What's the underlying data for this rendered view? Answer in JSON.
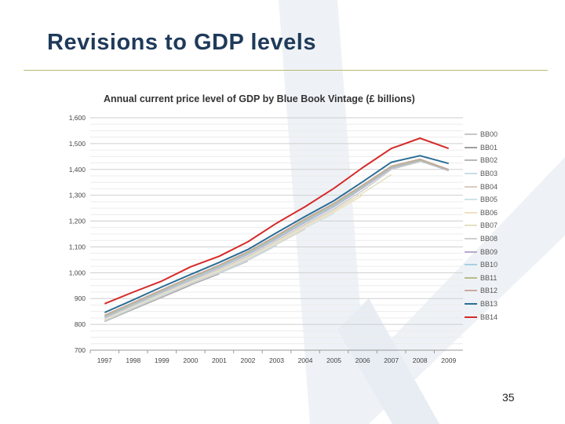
{
  "slide": {
    "title": "Revisions to GDP levels",
    "page_number": "35",
    "accent_color": "#1f3a5a",
    "rule_color": "#b9b96e"
  },
  "chart_data": {
    "type": "line",
    "title": "Annual current price level of GDP by Blue Book Vintage  (£ billions)",
    "xlabel": "",
    "ylabel": "",
    "ylim": [
      700,
      1600
    ],
    "yticks": [
      700,
      800,
      900,
      1000,
      1100,
      1200,
      1300,
      1400,
      1500,
      1600
    ],
    "ytick_labels": [
      "700",
      "800",
      "900",
      "1,000",
      "1,100",
      "1,200",
      "1,300",
      "1,400",
      "1,500",
      "1,600"
    ],
    "x": [
      "1997",
      "1998",
      "1999",
      "2000",
      "2001",
      "2002",
      "2003",
      "2004",
      "2005",
      "2006",
      "2007",
      "2008",
      "2009"
    ],
    "grid": true,
    "legend_position": "right",
    "series": [
      {
        "name": "BB00",
        "color": "#c8c8c8",
        "values": [
          811,
          858,
          904,
          951,
          null,
          null,
          null,
          null,
          null,
          null,
          null,
          null,
          null
        ]
      },
      {
        "name": "BB01",
        "color": "#a0a0a0",
        "values": [
          812,
          860,
          907,
          953,
          996,
          null,
          null,
          null,
          null,
          null,
          null,
          null,
          null
        ]
      },
      {
        "name": "BB02",
        "color": "#b8b8b8",
        "values": [
          813,
          862,
          909,
          956,
          999,
          1045,
          null,
          null,
          null,
          null,
          null,
          null,
          null
        ]
      },
      {
        "name": "BB03",
        "color": "#c9dde6",
        "values": [
          814,
          863,
          910,
          957,
          1000,
          1048,
          1105,
          null,
          null,
          null,
          null,
          null,
          null
        ]
      },
      {
        "name": "BB04",
        "color": "#dcccc0",
        "values": [
          816,
          865,
          912,
          959,
          1003,
          1052,
          1110,
          1170,
          null,
          null,
          null,
          null,
          null
        ]
      },
      {
        "name": "BB05",
        "color": "#cfe3ea",
        "values": [
          818,
          867,
          914,
          962,
          1006,
          1055,
          1113,
          1174,
          1230,
          null,
          null,
          null,
          null
        ]
      },
      {
        "name": "BB06",
        "color": "#efe0c4",
        "values": [
          820,
          869,
          917,
          964,
          1008,
          1058,
          1117,
          1178,
          1235,
          1300,
          null,
          null,
          null
        ]
      },
      {
        "name": "BB07",
        "color": "#e3e1c3",
        "values": [
          822,
          871,
          919,
          967,
          1011,
          1061,
          1121,
          1183,
          1241,
          1308,
          1380,
          null,
          null
        ]
      },
      {
        "name": "BB08",
        "color": "#cfcfcf",
        "values": [
          824,
          873,
          921,
          969,
          1014,
          1064,
          1125,
          1188,
          1247,
          1318,
          1400,
          1430,
          null
        ]
      },
      {
        "name": "BB09",
        "color": "#b5aacd",
        "values": [
          828,
          877,
          926,
          974,
          1020,
          1071,
          1132,
          1196,
          1256,
          1328,
          1405,
          1433,
          1395
        ]
      },
      {
        "name": "BB10",
        "color": "#a8d0e0",
        "values": [
          830,
          879,
          928,
          976,
          1023,
          1074,
          1136,
          1200,
          1260,
          1332,
          1408,
          1435,
          1397
        ]
      },
      {
        "name": "BB11",
        "color": "#b7bc8a",
        "values": [
          833,
          882,
          931,
          980,
          1027,
          1078,
          1140,
          1205,
          1265,
          1336,
          1410,
          1437,
          1398
        ]
      },
      {
        "name": "BB12",
        "color": "#c9a9a0",
        "values": [
          836,
          885,
          934,
          983,
          1030,
          1082,
          1144,
          1209,
          1269,
          1340,
          1413,
          1440,
          1400
        ]
      },
      {
        "name": "BB13",
        "color": "#2a6e96",
        "values": [
          846,
          895,
          945,
          993,
          1040,
          1090,
          1155,
          1218,
          1279,
          1352,
          1428,
          1453,
          1423
        ]
      },
      {
        "name": "BB14",
        "color": "#d62a2a",
        "values": [
          880,
          925,
          968,
          1023,
          1064,
          1120,
          1192,
          1256,
          1327,
          1407,
          1481,
          1521,
          1481
        ]
      }
    ]
  }
}
